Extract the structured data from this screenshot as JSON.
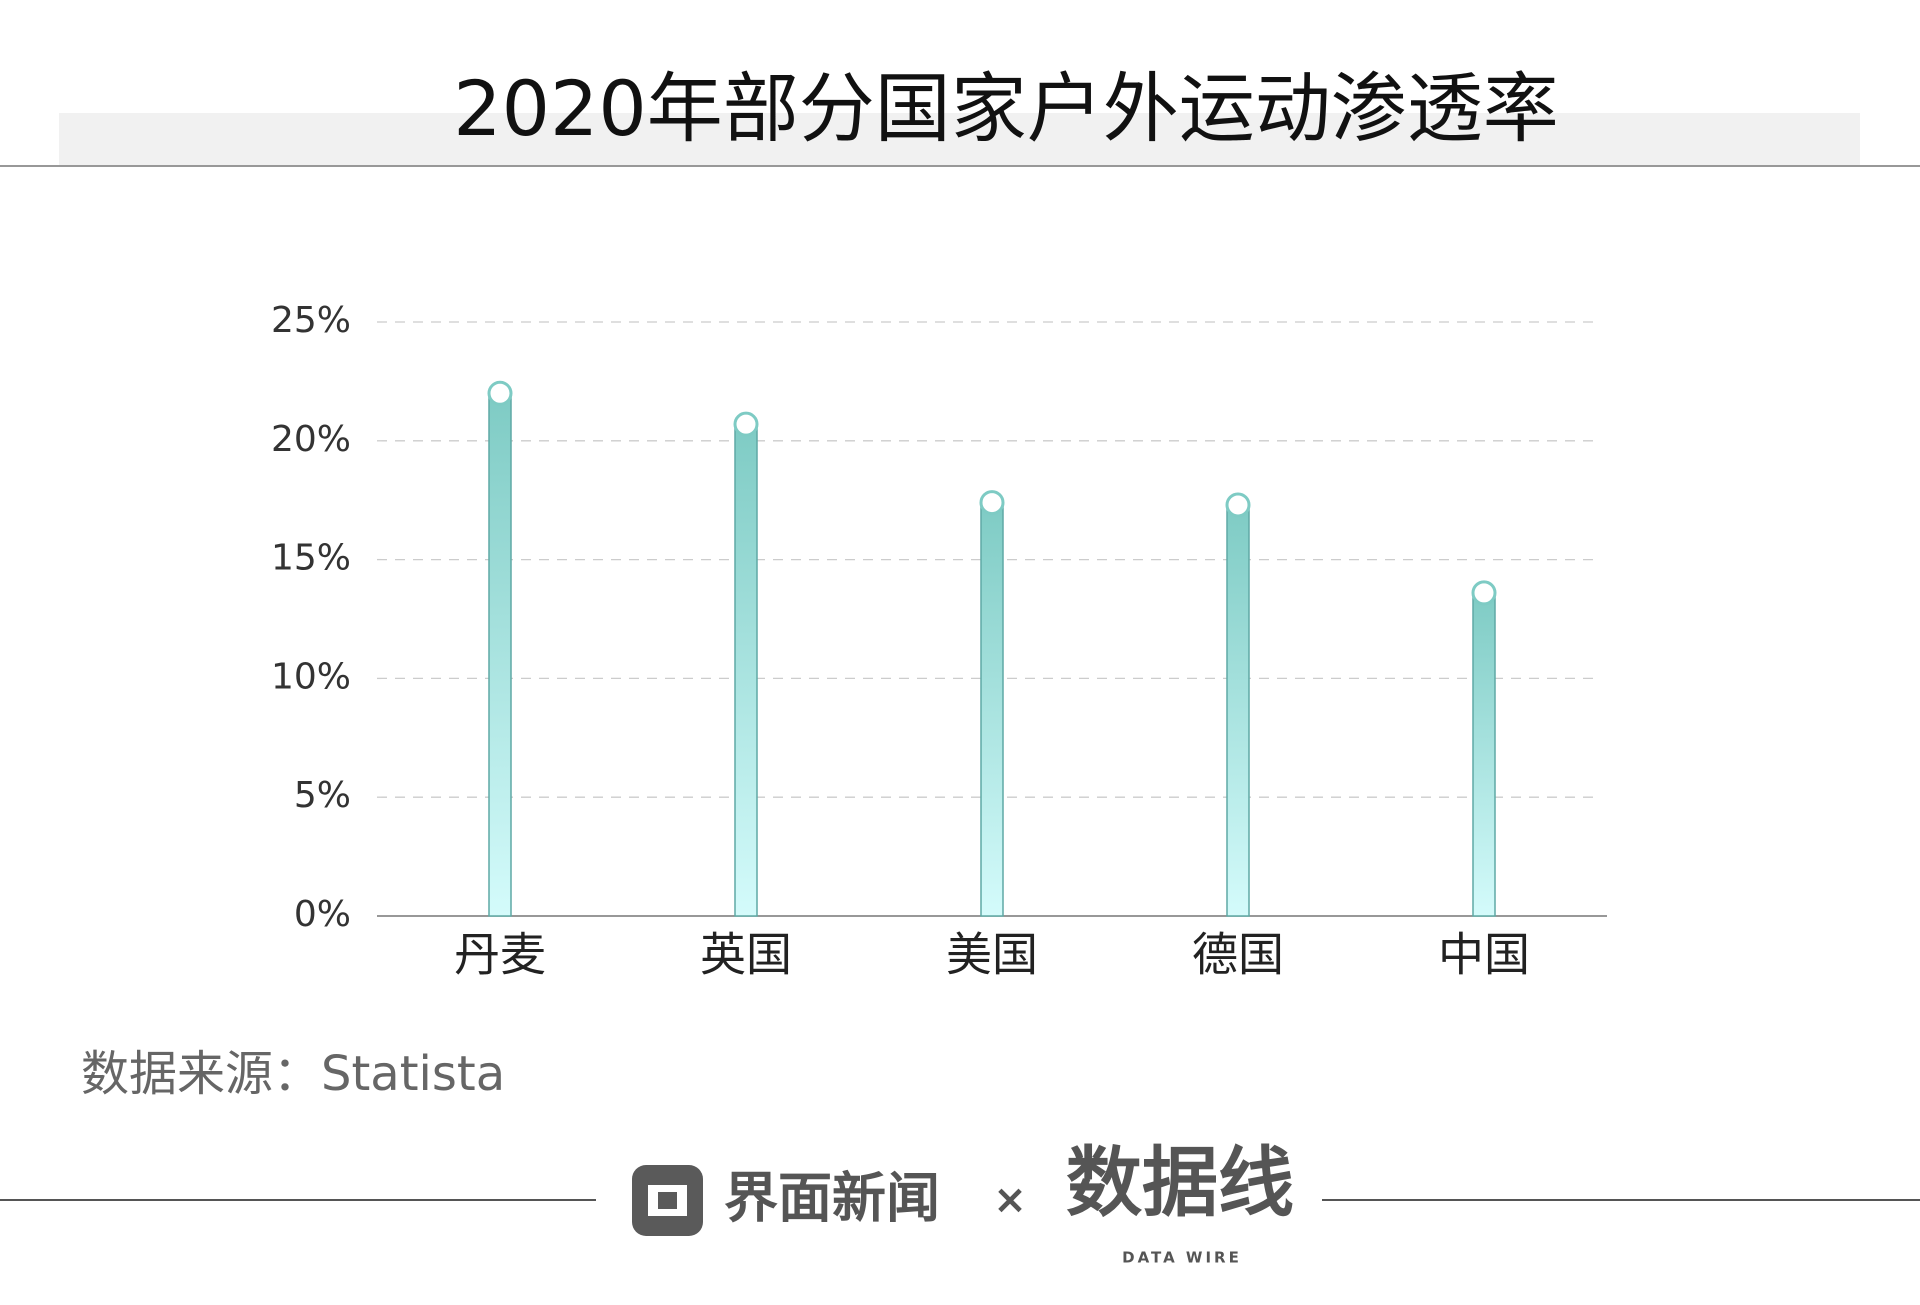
{
  "chart_data": {
    "type": "bar",
    "title": "2020年部分国家户外运动渗透率",
    "categories": [
      "丹麦",
      "英国",
      "美国",
      "德国",
      "中国"
    ],
    "values": [
      22,
      20.7,
      17.4,
      17.3,
      13.6
    ],
    "color": "#7ecbc4",
    "gradient_end": "#d4fbfb",
    "marker": "circle",
    "ylim": [
      0,
      25
    ],
    "yticks": [
      {
        "value": 0,
        "label": "0%"
      },
      {
        "value": 5,
        "label": "5%"
      },
      {
        "value": 10,
        "label": "10%"
      },
      {
        "value": 15,
        "label": "15%"
      },
      {
        "value": 20,
        "label": "20%"
      },
      {
        "value": 25,
        "label": "25%"
      }
    ],
    "grid": true,
    "source": "数据来源：Statista"
  },
  "footer": {
    "brand": "界面新闻",
    "cross": "×",
    "logo": "数据线",
    "logo_sub": "DATA WIRE"
  }
}
